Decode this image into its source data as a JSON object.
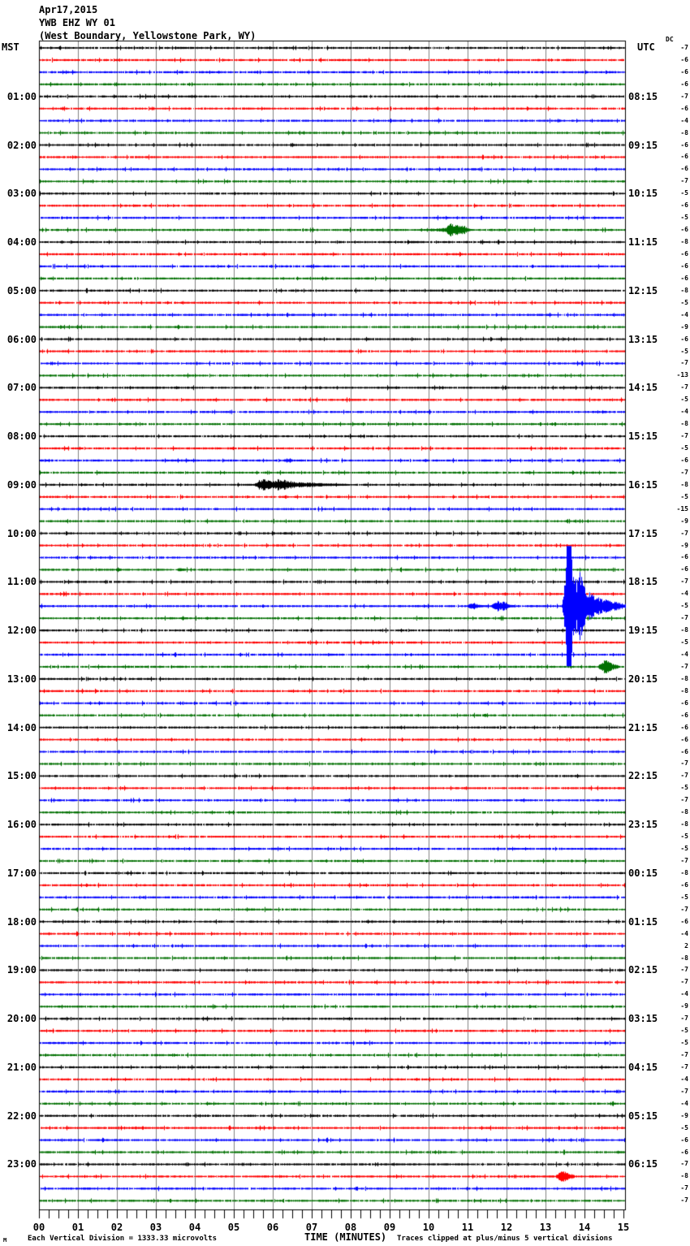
{
  "header": {
    "date": "Apr17,2015",
    "station": "YWB EHZ WY 01",
    "location": "(West Boundary, Yellowstone Park, WY)"
  },
  "axis": {
    "left_tz": "MST",
    "right_tz": "UTC",
    "dc_label": "DC",
    "x_title": "TIME (MINUTES)"
  },
  "footer": {
    "scale_note": "Each Vertical Division = 1333.33 microvolts",
    "clip_note": "Traces clipped at plus/minus 5 vertical divisions",
    "corner_mark": "M"
  },
  "chart_data": {
    "type": "line",
    "subtype": "helicorder-seismogram",
    "title": "YWB EHZ WY 01 (West Boundary, Yellowstone Park, WY) Apr17,2015",
    "xlabel": "TIME (MINUTES)",
    "x_range_minutes": [
      0,
      15
    ],
    "x_tick_labels": [
      "00",
      "01",
      "02",
      "03",
      "04",
      "05",
      "06",
      "07",
      "08",
      "09",
      "10",
      "11",
      "12",
      "13",
      "14",
      "15"
    ],
    "minutes_per_row": 15,
    "rows_per_hour": 4,
    "row_count": 96,
    "clip_divisions": 5,
    "microvolts_per_division": 1333.33,
    "grid": true,
    "grid_color": "#808080",
    "color_cycle": [
      "#000000",
      "#ff0000",
      "#0000ff",
      "#007000"
    ],
    "left_time_labels": [
      "01:00",
      "02:00",
      "03:00",
      "04:00",
      "05:00",
      "06:00",
      "07:00",
      "08:00",
      "09:00",
      "10:00",
      "11:00",
      "12:00",
      "13:00",
      "14:00",
      "15:00",
      "16:00",
      "17:00",
      "18:00",
      "19:00",
      "20:00",
      "21:00",
      "22:00",
      "23:00"
    ],
    "right_time_labels": [
      "08:15",
      "09:15",
      "10:15",
      "11:15",
      "12:15",
      "13:15",
      "14:15",
      "15:15",
      "16:15",
      "17:15",
      "18:15",
      "19:15",
      "20:15",
      "21:15",
      "22:15",
      "23:15",
      "00:15",
      "01:15",
      "02:15",
      "03:15",
      "04:15",
      "05:15",
      "06:15"
    ],
    "dc_values": [
      -7,
      -6,
      -6,
      -6,
      -7,
      -6,
      -4,
      -8,
      -6,
      -6,
      -6,
      -7,
      -5,
      -6,
      -5,
      -6,
      -8,
      -6,
      -6,
      -6,
      -8,
      -5,
      -4,
      -9,
      -6,
      -5,
      -7,
      -13,
      -7,
      -5,
      -4,
      -8,
      -7,
      -5,
      -6,
      -7,
      -8,
      -5,
      -15,
      -9,
      -7,
      -9,
      -6,
      -6,
      -7,
      -4,
      -5,
      -7,
      -8,
      -5,
      -4,
      -7,
      -8,
      -8,
      -6,
      -6,
      -6,
      -6,
      -6,
      -7,
      -7,
      -5,
      -7,
      -8,
      -8,
      -5,
      -5,
      -7,
      -8,
      -6,
      -5,
      -7,
      -6,
      -4,
      2,
      -8,
      -7,
      -7,
      -4,
      -9,
      -7,
      -5,
      -5,
      -7,
      -7,
      -4,
      -7,
      -4,
      -9,
      -5,
      -6,
      -6,
      -7,
      -8,
      -7,
      -7
    ],
    "events": [
      {
        "row": 15,
        "time_mst": "03:45",
        "points": [
          [
            518,
            1
          ],
          [
            542,
            2
          ],
          [
            548,
            3
          ],
          [
            552,
            6
          ],
          [
            556,
            9
          ],
          [
            560,
            5
          ],
          [
            563,
            8
          ],
          [
            567,
            5
          ],
          [
            571,
            6
          ],
          [
            575,
            3
          ],
          [
            580,
            1
          ]
        ]
      },
      {
        "row": 34,
        "time_mst": "08:30",
        "points": [
          [
            349,
            1
          ],
          [
            353,
            3
          ],
          [
            357,
            3
          ],
          [
            361,
            1
          ]
        ]
      },
      {
        "row": 36,
        "time_mst": "09:00",
        "points": [
          [
            314,
            2
          ],
          [
            319,
            6
          ],
          [
            325,
            7
          ],
          [
            333,
            5
          ],
          [
            342,
            7
          ],
          [
            352,
            6
          ],
          [
            360,
            4
          ],
          [
            370,
            3
          ],
          [
            383,
            3
          ],
          [
            398,
            2
          ],
          [
            415,
            1.5
          ],
          [
            430,
            1
          ]
        ]
      },
      {
        "row": 40,
        "time_mst": "10:00",
        "points": [
          [
            348,
            1
          ],
          [
            351,
            2
          ],
          [
            355,
            1
          ]
        ]
      },
      {
        "row": 43,
        "time_mst": "10:45",
        "points": [
          [
            142,
            1
          ],
          [
            145,
            3
          ],
          [
            148,
            1
          ]
        ]
      },
      {
        "row": 43,
        "time_mst": "10:45",
        "points": [
          [
            218,
            1
          ],
          [
            222,
            3
          ],
          [
            226,
            1
          ]
        ]
      },
      {
        "row": 46,
        "time_mst": "11:30",
        "points": [
          [
            575,
            1
          ],
          [
            579,
            3
          ],
          [
            584,
            4
          ],
          [
            589,
            2
          ],
          [
            597,
            1
          ]
        ]
      },
      {
        "row": 46,
        "time_mst": "11:30",
        "points": [
          [
            605,
            2
          ],
          [
            609,
            6
          ],
          [
            613,
            7
          ],
          [
            617,
            5
          ],
          [
            621,
            6
          ],
          [
            626,
            3
          ],
          [
            632,
            1
          ]
        ]
      },
      {
        "row": 46,
        "time_mst": "11:30",
        "points": [
          [
            692,
            3
          ],
          [
            696,
            40
          ],
          [
            698,
            75
          ],
          [
            703,
            75
          ],
          [
            706,
            45
          ],
          [
            710,
            30
          ],
          [
            714,
            48
          ],
          [
            718,
            28
          ],
          [
            724,
            20
          ],
          [
            731,
            14
          ],
          [
            740,
            10
          ],
          [
            750,
            7
          ],
          [
            760,
            5
          ],
          [
            770,
            3
          ]
        ]
      },
      {
        "row": 47,
        "time_mst": "11:45",
        "points": [
          [
            222,
            1
          ],
          [
            225,
            3
          ],
          [
            228,
            1
          ]
        ]
      },
      {
        "row": 51,
        "time_mst": "12:45",
        "points": [
          [
            737,
            2
          ],
          [
            742,
            6
          ],
          [
            746,
            10
          ],
          [
            750,
            7
          ],
          [
            755,
            4
          ],
          [
            761,
            2
          ]
        ]
      },
      {
        "row": 55,
        "time_mst": "13:45",
        "points": [
          [
            595,
            1
          ],
          [
            598,
            3
          ],
          [
            601,
            1
          ]
        ]
      },
      {
        "row": 93,
        "time_mst": "23:15",
        "points": [
          [
            685,
            2
          ],
          [
            689,
            5
          ],
          [
            693,
            8
          ],
          [
            697,
            6
          ],
          [
            701,
            4
          ],
          [
            707,
            2
          ]
        ]
      }
    ]
  }
}
